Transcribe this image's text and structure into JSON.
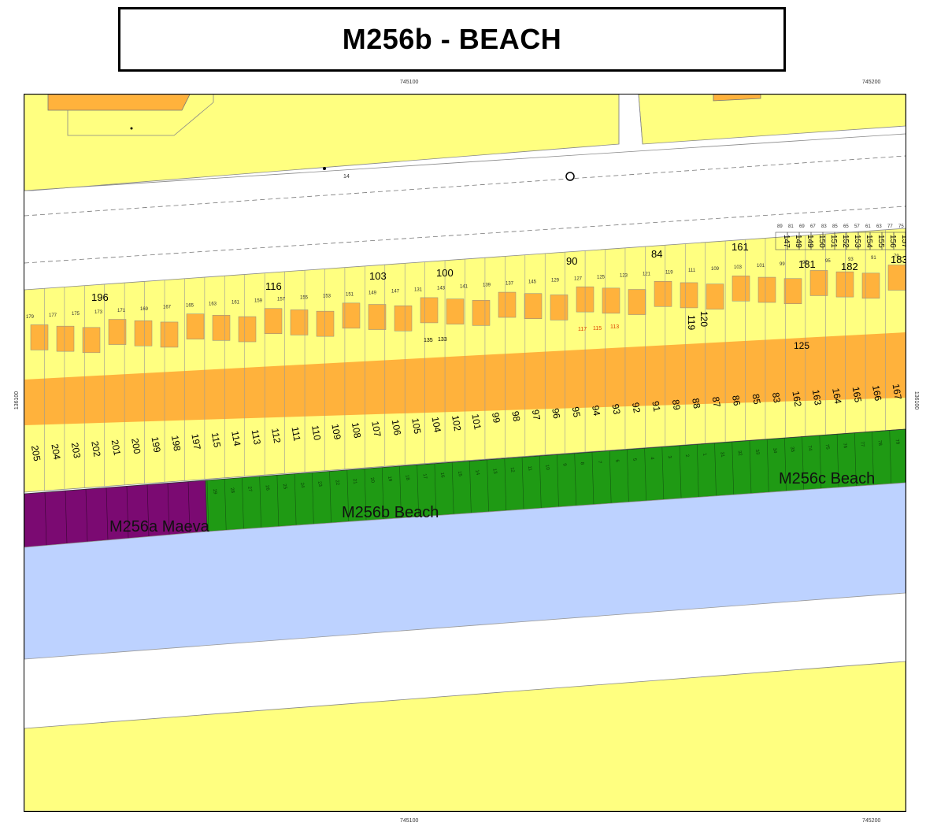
{
  "title": "M256b - BEACH",
  "coordinates": {
    "top_left": "745100",
    "top_right": "745200",
    "bottom_left": "745100",
    "bottom_right": "745200",
    "side_left": "136100",
    "side_right": "136100"
  },
  "zones": {
    "maeva": "M256a Maeva",
    "beach": "M256b Beach",
    "beach_c": "M256c Beach"
  },
  "colors": {
    "parcel_yellow": "#ffff80",
    "building_orange": "#ffb23c",
    "beach_green": "#1f9a14",
    "maeva_purple": "#7b0a72",
    "water_blue": "#bdd2ff",
    "road_white": "#ffffff"
  },
  "labels": {
    "parcel_14": "14",
    "block_196": "196",
    "block_116": "116",
    "block_103": "103",
    "block_100": "100",
    "block_90": "90",
    "block_84": "84",
    "block_161": "161",
    "block_181": "181",
    "block_182": "182",
    "block_183": "183",
    "lot_119": "119",
    "lot_120": "120",
    "lot_125": "125",
    "lot_117": "117",
    "lot_115": "115",
    "lot_113": "113",
    "lot_135": "135",
    "lot_133": "133"
  },
  "upper_row_numbers": [
    "179",
    "177",
    "175",
    "173",
    "171",
    "169",
    "167",
    "165",
    "163",
    "161",
    "159",
    "157",
    "155",
    "153",
    "151",
    "149",
    "147",
    "131",
    "143",
    "141",
    "139",
    "137",
    "145",
    "129",
    "127",
    "125",
    "123",
    "121",
    "119",
    "111",
    "109",
    "103",
    "101",
    "99",
    "97",
    "95",
    "93",
    "91",
    "79"
  ],
  "top_right_row1": [
    "89",
    "81",
    "69",
    "67",
    "83",
    "85",
    "65",
    "57",
    "61",
    "63",
    "77",
    "75"
  ],
  "top_right_row2": [
    "147",
    "149",
    "149",
    "150",
    "151",
    "152",
    "153",
    "154",
    "155",
    "156",
    "157"
  ],
  "lot_numbers": [
    "205",
    "204",
    "203",
    "202",
    "201",
    "200",
    "199",
    "198",
    "197",
    "115",
    "114",
    "113",
    "112",
    "111",
    "110",
    "109",
    "108",
    "107",
    "106",
    "105",
    "104",
    "102",
    "101",
    "99",
    "98",
    "97",
    "96",
    "95",
    "94",
    "93",
    "92",
    "91",
    "89",
    "88",
    "87",
    "86",
    "85",
    "83",
    "162",
    "163",
    "164",
    "165",
    "166",
    "167"
  ],
  "beach_slots": [
    "29",
    "28",
    "27",
    "26",
    "25",
    "24",
    "23",
    "22",
    "21",
    "20",
    "19",
    "18",
    "17",
    "16",
    "15",
    "14",
    "13",
    "12",
    "11",
    "10",
    "9",
    "8",
    "7",
    "6",
    "5",
    "4",
    "3",
    "2",
    "1",
    "31",
    "32",
    "33",
    "34",
    "35",
    "74",
    "75",
    "76",
    "77",
    "78",
    "79"
  ]
}
